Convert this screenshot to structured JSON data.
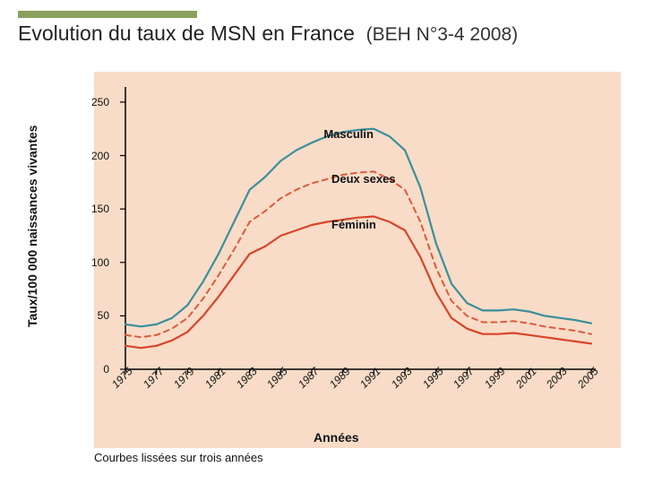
{
  "title": "Evolution du taux de MSN en France",
  "title_ref": "(BEH N°3-4 2008)",
  "chart": {
    "type": "line",
    "background_color": "#f8dcc7",
    "axis_color": "#000000",
    "ylabel": "Taux/100 000 naissances vivantes",
    "xlabel": "Années",
    "caption": "Courbes lissées sur trois années",
    "ylim": [
      0,
      260
    ],
    "ytick_step": 50,
    "yticks": [
      0,
      50,
      100,
      150,
      200,
      250
    ],
    "xticks": [
      1975,
      1977,
      1979,
      1981,
      1983,
      1985,
      1987,
      1989,
      1991,
      1993,
      1995,
      1997,
      1999,
      2001,
      2003,
      2005
    ],
    "xlim": [
      1975,
      2005
    ],
    "series": [
      {
        "name": "Masculin",
        "label": "Masculin",
        "color": "#3a8f9c",
        "linewidth": 2.2,
        "dash": "none",
        "label_pos": {
          "x": 1989.5,
          "y": 215
        },
        "points": [
          [
            1975,
            42
          ],
          [
            1976,
            40
          ],
          [
            1977,
            42
          ],
          [
            1978,
            48
          ],
          [
            1979,
            60
          ],
          [
            1980,
            82
          ],
          [
            1981,
            108
          ],
          [
            1982,
            138
          ],
          [
            1983,
            168
          ],
          [
            1984,
            180
          ],
          [
            1985,
            195
          ],
          [
            1986,
            205
          ],
          [
            1987,
            212
          ],
          [
            1988,
            218
          ],
          [
            1989,
            222
          ],
          [
            1990,
            224
          ],
          [
            1991,
            225
          ],
          [
            1992,
            218
          ],
          [
            1993,
            205
          ],
          [
            1994,
            170
          ],
          [
            1995,
            118
          ],
          [
            1996,
            80
          ],
          [
            1997,
            62
          ],
          [
            1998,
            55
          ],
          [
            1999,
            55
          ],
          [
            2000,
            56
          ],
          [
            2001,
            54
          ],
          [
            2002,
            50
          ],
          [
            2003,
            48
          ],
          [
            2004,
            46
          ],
          [
            2005,
            43
          ]
        ]
      },
      {
        "name": "Deux sexes",
        "label": "Deux sexes",
        "color": "#d95b3e",
        "linewidth": 2.0,
        "dash": "6,5",
        "label_pos": {
          "x": 1990,
          "y": 173
        },
        "points": [
          [
            1975,
            32
          ],
          [
            1976,
            30
          ],
          [
            1977,
            32
          ],
          [
            1978,
            38
          ],
          [
            1979,
            48
          ],
          [
            1980,
            66
          ],
          [
            1981,
            88
          ],
          [
            1982,
            112
          ],
          [
            1983,
            138
          ],
          [
            1984,
            148
          ],
          [
            1985,
            160
          ],
          [
            1986,
            168
          ],
          [
            1987,
            174
          ],
          [
            1988,
            178
          ],
          [
            1989,
            182
          ],
          [
            1990,
            184
          ],
          [
            1991,
            185
          ],
          [
            1992,
            178
          ],
          [
            1993,
            168
          ],
          [
            1994,
            138
          ],
          [
            1995,
            95
          ],
          [
            1996,
            64
          ],
          [
            1997,
            50
          ],
          [
            1998,
            44
          ],
          [
            1999,
            44
          ],
          [
            2000,
            45
          ],
          [
            2001,
            43
          ],
          [
            2002,
            40
          ],
          [
            2003,
            38
          ],
          [
            2004,
            36
          ],
          [
            2005,
            33
          ]
        ]
      },
      {
        "name": "Féminin",
        "label": "Féminin",
        "color": "#d9442a",
        "linewidth": 2.2,
        "dash": "none",
        "label_pos": {
          "x": 1990,
          "y": 130
        },
        "points": [
          [
            1975,
            22
          ],
          [
            1976,
            20
          ],
          [
            1977,
            22
          ],
          [
            1978,
            27
          ],
          [
            1979,
            35
          ],
          [
            1980,
            50
          ],
          [
            1981,
            68
          ],
          [
            1982,
            88
          ],
          [
            1983,
            108
          ],
          [
            1984,
            115
          ],
          [
            1985,
            125
          ],
          [
            1986,
            130
          ],
          [
            1987,
            135
          ],
          [
            1988,
            138
          ],
          [
            1989,
            140
          ],
          [
            1990,
            142
          ],
          [
            1991,
            143
          ],
          [
            1992,
            138
          ],
          [
            1993,
            130
          ],
          [
            1994,
            105
          ],
          [
            1995,
            72
          ],
          [
            1996,
            48
          ],
          [
            1997,
            38
          ],
          [
            1998,
            33
          ],
          [
            1999,
            33
          ],
          [
            2000,
            34
          ],
          [
            2001,
            32
          ],
          [
            2002,
            30
          ],
          [
            2003,
            28
          ],
          [
            2004,
            26
          ],
          [
            2005,
            24
          ]
        ]
      }
    ]
  }
}
